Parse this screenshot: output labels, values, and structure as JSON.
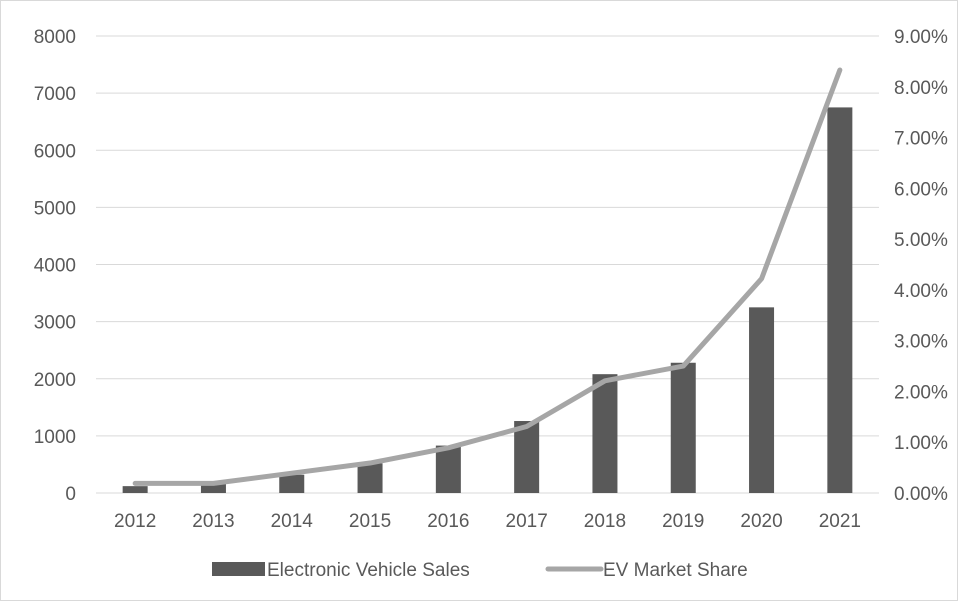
{
  "chart_data": {
    "type": "bar",
    "categories": [
      "2012",
      "2013",
      "2014",
      "2015",
      "2016",
      "2017",
      "2018",
      "2019",
      "2020",
      "2021"
    ],
    "series": [
      {
        "name": "Electronic Vehicle Sales",
        "type": "bar",
        "axis": "left",
        "color": "#595959",
        "values": [
          120,
          160,
          320,
          520,
          830,
          1260,
          2080,
          2280,
          3250,
          6750
        ]
      },
      {
        "name": "EV Market Share",
        "type": "line",
        "axis": "right",
        "color": "#a6a6a6",
        "values": [
          0.0019,
          0.0019,
          0.0039,
          0.0059,
          0.0089,
          0.0131,
          0.0221,
          0.025,
          0.0422,
          0.0833
        ]
      }
    ],
    "left_axis": {
      "min": 0,
      "max": 8000,
      "step": 1000,
      "ticks": [
        "0",
        "1000",
        "2000",
        "3000",
        "4000",
        "5000",
        "6000",
        "7000",
        "8000"
      ]
    },
    "right_axis": {
      "min": 0,
      "max": 0.09,
      "step": 0.01,
      "ticks": [
        "0.00%",
        "1.00%",
        "2.00%",
        "3.00%",
        "4.00%",
        "5.00%",
        "6.00%",
        "7.00%",
        "8.00%",
        "9.00%"
      ]
    },
    "grid": true,
    "legend_position": "bottom",
    "colors": {
      "grid": "#d9d9d9",
      "text": "#595959"
    }
  }
}
